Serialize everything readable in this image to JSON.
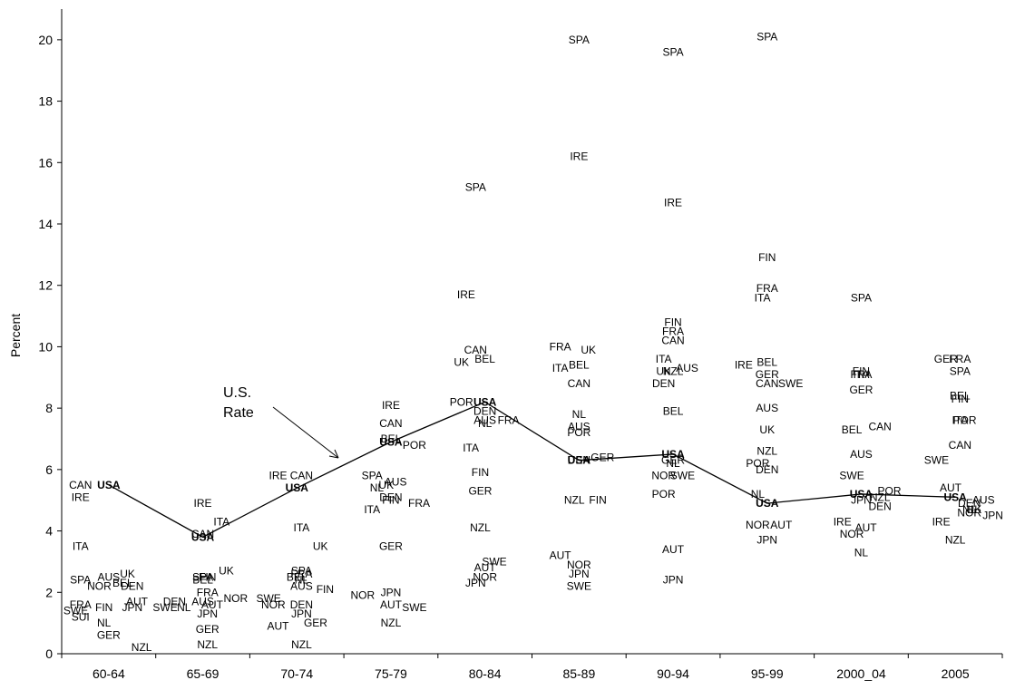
{
  "chart_data": {
    "type": "scatter",
    "title": "",
    "xlabel": "",
    "ylabel": "Percent",
    "ylim": [
      0,
      21
    ],
    "yticks": [
      0,
      2,
      4,
      6,
      8,
      10,
      12,
      14,
      16,
      18,
      20
    ],
    "grid": false,
    "legend": "none",
    "categories": [
      "60-64",
      "65-69",
      "70-74",
      "75-79",
      "80-84",
      "85-89",
      "90-94",
      "95-99",
      "2000_04",
      "2005"
    ],
    "us_series": {
      "label": "USA",
      "values": [
        5.5,
        3.8,
        5.4,
        6.9,
        8.2,
        6.3,
        6.5,
        4.9,
        5.2,
        5.1
      ]
    },
    "annotation": {
      "lines": [
        "U.S.",
        "Rate"
      ]
    },
    "points": [
      {
        "c": 0,
        "x": -0.3,
        "y": 5.5,
        "t": "CAN"
      },
      {
        "c": 0,
        "x": -0.3,
        "y": 5.1,
        "t": "IRE"
      },
      {
        "c": 0,
        "x": -0.3,
        "y": 3.5,
        "t": "ITA"
      },
      {
        "c": 0,
        "x": -0.3,
        "y": 2.4,
        "t": "SPA"
      },
      {
        "c": 0,
        "x": 0,
        "y": 2.5,
        "t": "AUS"
      },
      {
        "c": 0,
        "x": 0.2,
        "y": 2.6,
        "t": "UK"
      },
      {
        "c": 0,
        "x": -0.1,
        "y": 2.2,
        "t": "NOR"
      },
      {
        "c": 0,
        "x": 0.15,
        "y": 2.3,
        "t": "BEL"
      },
      {
        "c": 0,
        "x": 0.25,
        "y": 2.2,
        "t": "DEN"
      },
      {
        "c": 0,
        "x": -0.3,
        "y": 1.6,
        "t": "FRA"
      },
      {
        "c": 0,
        "x": -0.35,
        "y": 1.4,
        "t": "SWE"
      },
      {
        "c": 0,
        "x": -0.05,
        "y": 1.5,
        "t": "FIN"
      },
      {
        "c": 0,
        "x": 0.25,
        "y": 1.5,
        "t": "JPN"
      },
      {
        "c": 0,
        "x": 0.3,
        "y": 1.7,
        "t": "AUT"
      },
      {
        "c": 0,
        "x": -0.3,
        "y": 1.2,
        "t": "SUI"
      },
      {
        "c": 0,
        "x": -0.05,
        "y": 1.0,
        "t": "NL"
      },
      {
        "c": 0,
        "x": 0,
        "y": 0.6,
        "t": "GER"
      },
      {
        "c": 0,
        "x": 0.35,
        "y": 0.2,
        "t": "NZL"
      },
      {
        "c": 1,
        "x": 0,
        "y": 4.9,
        "t": "IRE"
      },
      {
        "c": 1,
        "x": 0.2,
        "y": 4.3,
        "t": "ITA"
      },
      {
        "c": 1,
        "x": 0,
        "y": 3.9,
        "t": "CAN"
      },
      {
        "c": 1,
        "x": 0.25,
        "y": 2.7,
        "t": "UK"
      },
      {
        "c": 1,
        "x": 0,
        "y": 2.5,
        "t": "SPA"
      },
      {
        "c": 1,
        "x": 0.05,
        "y": 2.5,
        "t": "FIN"
      },
      {
        "c": 1,
        "x": 0,
        "y": 2.4,
        "t": "BEL"
      },
      {
        "c": 1,
        "x": 0.05,
        "y": 2.0,
        "t": "FRA"
      },
      {
        "c": 1,
        "x": -0.3,
        "y": 1.7,
        "t": "DEN"
      },
      {
        "c": 1,
        "x": 0,
        "y": 1.7,
        "t": "AUS"
      },
      {
        "c": 1,
        "x": 0.35,
        "y": 1.8,
        "t": "NOR"
      },
      {
        "c": 1,
        "x": -0.4,
        "y": 1.5,
        "t": "SWE"
      },
      {
        "c": 1,
        "x": -0.2,
        "y": 1.5,
        "t": "NL"
      },
      {
        "c": 1,
        "x": 0.1,
        "y": 1.6,
        "t": "AUT"
      },
      {
        "c": 1,
        "x": 0.05,
        "y": 1.3,
        "t": "JPN"
      },
      {
        "c": 1,
        "x": 0.05,
        "y": 0.8,
        "t": "GER"
      },
      {
        "c": 1,
        "x": 0.05,
        "y": 0.3,
        "t": "NZL"
      },
      {
        "c": 2,
        "x": -0.2,
        "y": 5.8,
        "t": "IRE"
      },
      {
        "c": 2,
        "x": 0.05,
        "y": 5.8,
        "t": "CAN"
      },
      {
        "c": 2,
        "x": 0.05,
        "y": 4.1,
        "t": "ITA"
      },
      {
        "c": 2,
        "x": 0.25,
        "y": 3.5,
        "t": "UK"
      },
      {
        "c": 2,
        "x": 0.05,
        "y": 2.7,
        "t": "SPA"
      },
      {
        "c": 2,
        "x": 0.05,
        "y": 2.6,
        "t": "FRA"
      },
      {
        "c": 2,
        "x": 0,
        "y": 2.5,
        "t": "BEL"
      },
      {
        "c": 2,
        "x": 0.05,
        "y": 2.4,
        "t": "NL"
      },
      {
        "c": 2,
        "x": 0.05,
        "y": 2.2,
        "t": "AUS"
      },
      {
        "c": 2,
        "x": 0.3,
        "y": 2.1,
        "t": "FIN"
      },
      {
        "c": 2,
        "x": -0.3,
        "y": 1.8,
        "t": "SWE"
      },
      {
        "c": 2,
        "x": -0.25,
        "y": 1.6,
        "t": "NOR"
      },
      {
        "c": 2,
        "x": 0.05,
        "y": 1.6,
        "t": "DEN"
      },
      {
        "c": 2,
        "x": 0.05,
        "y": 1.3,
        "t": "JPN"
      },
      {
        "c": 2,
        "x": -0.2,
        "y": 0.9,
        "t": "AUT"
      },
      {
        "c": 2,
        "x": 0.2,
        "y": 1.0,
        "t": "GER"
      },
      {
        "c": 2,
        "x": 0.05,
        "y": 0.3,
        "t": "NZL"
      },
      {
        "c": 3,
        "x": 0,
        "y": 8.1,
        "t": "IRE"
      },
      {
        "c": 3,
        "x": 0,
        "y": 7.5,
        "t": "CAN"
      },
      {
        "c": 3,
        "x": 0,
        "y": 7.0,
        "t": "BEL"
      },
      {
        "c": 3,
        "x": 0.25,
        "y": 6.8,
        "t": "POR"
      },
      {
        "c": 3,
        "x": -0.2,
        "y": 5.8,
        "t": "SPA"
      },
      {
        "c": 3,
        "x": 0.05,
        "y": 5.6,
        "t": "AUS"
      },
      {
        "c": 3,
        "x": -0.05,
        "y": 5.5,
        "t": "UK"
      },
      {
        "c": 3,
        "x": -0.15,
        "y": 5.4,
        "t": "NL"
      },
      {
        "c": 3,
        "x": 0,
        "y": 5.1,
        "t": "DEN"
      },
      {
        "c": 3,
        "x": 0,
        "y": 5.0,
        "t": "FIN"
      },
      {
        "c": 3,
        "x": 0.3,
        "y": 4.9,
        "t": "FRA"
      },
      {
        "c": 3,
        "x": -0.2,
        "y": 4.7,
        "t": "ITA"
      },
      {
        "c": 3,
        "x": 0,
        "y": 3.5,
        "t": "GER"
      },
      {
        "c": 3,
        "x": 0,
        "y": 2.0,
        "t": "JPN"
      },
      {
        "c": 3,
        "x": -0.3,
        "y": 1.9,
        "t": "NOR"
      },
      {
        "c": 3,
        "x": 0,
        "y": 1.6,
        "t": "AUT"
      },
      {
        "c": 3,
        "x": 0.25,
        "y": 1.5,
        "t": "SWE"
      },
      {
        "c": 3,
        "x": 0,
        "y": 1.0,
        "t": "NZL"
      },
      {
        "c": 4,
        "x": -0.1,
        "y": 15.2,
        "t": "SPA"
      },
      {
        "c": 4,
        "x": -0.2,
        "y": 11.7,
        "t": "IRE"
      },
      {
        "c": 4,
        "x": -0.1,
        "y": 9.9,
        "t": "CAN"
      },
      {
        "c": 4,
        "x": 0,
        "y": 9.6,
        "t": "BEL"
      },
      {
        "c": 4,
        "x": -0.25,
        "y": 9.5,
        "t": "UK"
      },
      {
        "c": 4,
        "x": -0.25,
        "y": 8.2,
        "t": "POR"
      },
      {
        "c": 4,
        "x": 0,
        "y": 7.9,
        "t": "DEN"
      },
      {
        "c": 4,
        "x": 0,
        "y": 7.6,
        "t": "AUS"
      },
      {
        "c": 4,
        "x": 0,
        "y": 7.5,
        "t": "NL"
      },
      {
        "c": 4,
        "x": 0.25,
        "y": 7.6,
        "t": "FRA"
      },
      {
        "c": 4,
        "x": -0.15,
        "y": 6.7,
        "t": "ITA"
      },
      {
        "c": 4,
        "x": -0.05,
        "y": 5.9,
        "t": "FIN"
      },
      {
        "c": 4,
        "x": -0.05,
        "y": 5.3,
        "t": "GER"
      },
      {
        "c": 4,
        "x": -0.05,
        "y": 4.1,
        "t": "NZL"
      },
      {
        "c": 4,
        "x": 0.1,
        "y": 3.0,
        "t": "SWE"
      },
      {
        "c": 4,
        "x": 0,
        "y": 2.8,
        "t": "AUT"
      },
      {
        "c": 4,
        "x": 0,
        "y": 2.5,
        "t": "NOR"
      },
      {
        "c": 4,
        "x": -0.1,
        "y": 2.3,
        "t": "JPN"
      },
      {
        "c": 5,
        "x": 0,
        "y": 20.0,
        "t": "SPA"
      },
      {
        "c": 5,
        "x": 0,
        "y": 16.2,
        "t": "IRE"
      },
      {
        "c": 5,
        "x": -0.2,
        "y": 10.0,
        "t": "FRA"
      },
      {
        "c": 5,
        "x": 0.1,
        "y": 9.9,
        "t": "UK"
      },
      {
        "c": 5,
        "x": 0,
        "y": 9.4,
        "t": "BEL"
      },
      {
        "c": 5,
        "x": -0.2,
        "y": 9.3,
        "t": "ITA"
      },
      {
        "c": 5,
        "x": 0,
        "y": 8.8,
        "t": "CAN"
      },
      {
        "c": 5,
        "x": 0,
        "y": 7.8,
        "t": "NL"
      },
      {
        "c": 5,
        "x": 0,
        "y": 7.4,
        "t": "AUS"
      },
      {
        "c": 5,
        "x": 0,
        "y": 7.2,
        "t": "POR"
      },
      {
        "c": 5,
        "x": 0,
        "y": 6.3,
        "t": "DEN"
      },
      {
        "c": 5,
        "x": 0.25,
        "y": 6.4,
        "t": "GER"
      },
      {
        "c": 5,
        "x": -0.05,
        "y": 5.0,
        "t": "NZL"
      },
      {
        "c": 5,
        "x": 0.2,
        "y": 5.0,
        "t": "FIN"
      },
      {
        "c": 5,
        "x": -0.2,
        "y": 3.2,
        "t": "AUT"
      },
      {
        "c": 5,
        "x": 0,
        "y": 2.9,
        "t": "NOR"
      },
      {
        "c": 5,
        "x": 0,
        "y": 2.6,
        "t": "JPN"
      },
      {
        "c": 5,
        "x": 0,
        "y": 2.2,
        "t": "SWE"
      },
      {
        "c": 6,
        "x": 0,
        "y": 19.6,
        "t": "SPA"
      },
      {
        "c": 6,
        "x": 0,
        "y": 14.7,
        "t": "IRE"
      },
      {
        "c": 6,
        "x": 0,
        "y": 10.8,
        "t": "FIN"
      },
      {
        "c": 6,
        "x": 0,
        "y": 10.5,
        "t": "FRA"
      },
      {
        "c": 6,
        "x": 0,
        "y": 10.2,
        "t": "CAN"
      },
      {
        "c": 6,
        "x": -0.1,
        "y": 9.6,
        "t": "ITA"
      },
      {
        "c": 6,
        "x": -0.1,
        "y": 9.2,
        "t": "UK"
      },
      {
        "c": 6,
        "x": 0,
        "y": 9.2,
        "t": "NZL"
      },
      {
        "c": 6,
        "x": 0.15,
        "y": 9.3,
        "t": "AUS"
      },
      {
        "c": 6,
        "x": -0.1,
        "y": 8.8,
        "t": "DEN"
      },
      {
        "c": 6,
        "x": 0,
        "y": 7.9,
        "t": "BEL"
      },
      {
        "c": 6,
        "x": 0,
        "y": 6.3,
        "t": "GER"
      },
      {
        "c": 6,
        "x": 0,
        "y": 6.2,
        "t": "NL"
      },
      {
        "c": 6,
        "x": 0.1,
        "y": 5.8,
        "t": "SWE"
      },
      {
        "c": 6,
        "x": -0.1,
        "y": 5.8,
        "t": "NOR"
      },
      {
        "c": 6,
        "x": -0.1,
        "y": 5.2,
        "t": "POR"
      },
      {
        "c": 6,
        "x": 0,
        "y": 3.4,
        "t": "AUT"
      },
      {
        "c": 6,
        "x": 0,
        "y": 2.4,
        "t": "JPN"
      },
      {
        "c": 7,
        "x": 0,
        "y": 20.1,
        "t": "SPA"
      },
      {
        "c": 7,
        "x": 0,
        "y": 12.9,
        "t": "FIN"
      },
      {
        "c": 7,
        "x": 0,
        "y": 11.9,
        "t": "FRA"
      },
      {
        "c": 7,
        "x": -0.05,
        "y": 11.6,
        "t": "ITA"
      },
      {
        "c": 7,
        "x": -0.25,
        "y": 9.4,
        "t": "IRE"
      },
      {
        "c": 7,
        "x": 0,
        "y": 9.5,
        "t": "BEL"
      },
      {
        "c": 7,
        "x": 0,
        "y": 9.1,
        "t": "GER"
      },
      {
        "c": 7,
        "x": 0,
        "y": 8.8,
        "t": "CAN"
      },
      {
        "c": 7,
        "x": 0.25,
        "y": 8.8,
        "t": "SWE"
      },
      {
        "c": 7,
        "x": 0,
        "y": 8.0,
        "t": "AUS"
      },
      {
        "c": 7,
        "x": 0,
        "y": 7.3,
        "t": "UK"
      },
      {
        "c": 7,
        "x": 0,
        "y": 6.6,
        "t": "NZL"
      },
      {
        "c": 7,
        "x": -0.1,
        "y": 6.2,
        "t": "POR"
      },
      {
        "c": 7,
        "x": 0,
        "y": 6.0,
        "t": "DEN"
      },
      {
        "c": 7,
        "x": -0.1,
        "y": 5.2,
        "t": "NL"
      },
      {
        "c": 7,
        "x": -0.1,
        "y": 4.2,
        "t": "NOR"
      },
      {
        "c": 7,
        "x": 0.15,
        "y": 4.2,
        "t": "AUT"
      },
      {
        "c": 7,
        "x": 0,
        "y": 3.7,
        "t": "JPN"
      },
      {
        "c": 8,
        "x": 0,
        "y": 11.6,
        "t": "SPA"
      },
      {
        "c": 8,
        "x": 0,
        "y": 9.2,
        "t": "FIN"
      },
      {
        "c": 8,
        "x": 0,
        "y": 9.1,
        "t": "FRA"
      },
      {
        "c": 8,
        "x": 0,
        "y": 9.1,
        "t": "ITA"
      },
      {
        "c": 8,
        "x": 0,
        "y": 8.6,
        "t": "GER"
      },
      {
        "c": 8,
        "x": -0.1,
        "y": 7.3,
        "t": "BEL"
      },
      {
        "c": 8,
        "x": 0.2,
        "y": 7.4,
        "t": "CAN"
      },
      {
        "c": 8,
        "x": 0,
        "y": 6.5,
        "t": "AUS"
      },
      {
        "c": 8,
        "x": -0.1,
        "y": 5.8,
        "t": "SWE"
      },
      {
        "c": 8,
        "x": 0.3,
        "y": 5.3,
        "t": "POR"
      },
      {
        "c": 8,
        "x": 0,
        "y": 5.0,
        "t": "JPN"
      },
      {
        "c": 8,
        "x": 0.2,
        "y": 5.1,
        "t": "NZL"
      },
      {
        "c": 8,
        "x": 0.2,
        "y": 4.8,
        "t": "DEN"
      },
      {
        "c": 8,
        "x": -0.2,
        "y": 4.3,
        "t": "IRE"
      },
      {
        "c": 8,
        "x": 0.05,
        "y": 4.1,
        "t": "AUT"
      },
      {
        "c": 8,
        "x": -0.1,
        "y": 3.9,
        "t": "NOR"
      },
      {
        "c": 8,
        "x": 0,
        "y": 3.3,
        "t": "NL"
      },
      {
        "c": 9,
        "x": -0.1,
        "y": 9.6,
        "t": "GER"
      },
      {
        "c": 9,
        "x": 0.05,
        "y": 9.6,
        "t": "FRA"
      },
      {
        "c": 9,
        "x": 0.05,
        "y": 9.2,
        "t": "SPA"
      },
      {
        "c": 9,
        "x": 0.05,
        "y": 8.4,
        "t": "BEL"
      },
      {
        "c": 9,
        "x": 0.05,
        "y": 8.3,
        "t": "FIN"
      },
      {
        "c": 9,
        "x": 0.05,
        "y": 7.6,
        "t": "ITA"
      },
      {
        "c": 9,
        "x": 0.1,
        "y": 7.6,
        "t": "POR"
      },
      {
        "c": 9,
        "x": 0.05,
        "y": 6.8,
        "t": "CAN"
      },
      {
        "c": 9,
        "x": -0.2,
        "y": 6.3,
        "t": "SWE"
      },
      {
        "c": 9,
        "x": -0.05,
        "y": 5.4,
        "t": "AUT"
      },
      {
        "c": 9,
        "x": 0.3,
        "y": 5.0,
        "t": "AUS"
      },
      {
        "c": 9,
        "x": 0.15,
        "y": 4.9,
        "t": "DEN"
      },
      {
        "c": 9,
        "x": 0.15,
        "y": 4.7,
        "t": "NL"
      },
      {
        "c": 9,
        "x": 0.15,
        "y": 4.6,
        "t": "NOR"
      },
      {
        "c": 9,
        "x": 0.2,
        "y": 4.7,
        "t": "UK"
      },
      {
        "c": 9,
        "x": 0.4,
        "y": 4.5,
        "t": "JPN"
      },
      {
        "c": 9,
        "x": -0.15,
        "y": 4.3,
        "t": "IRE"
      },
      {
        "c": 9,
        "x": 0,
        "y": 3.7,
        "t": "NZL"
      }
    ]
  }
}
